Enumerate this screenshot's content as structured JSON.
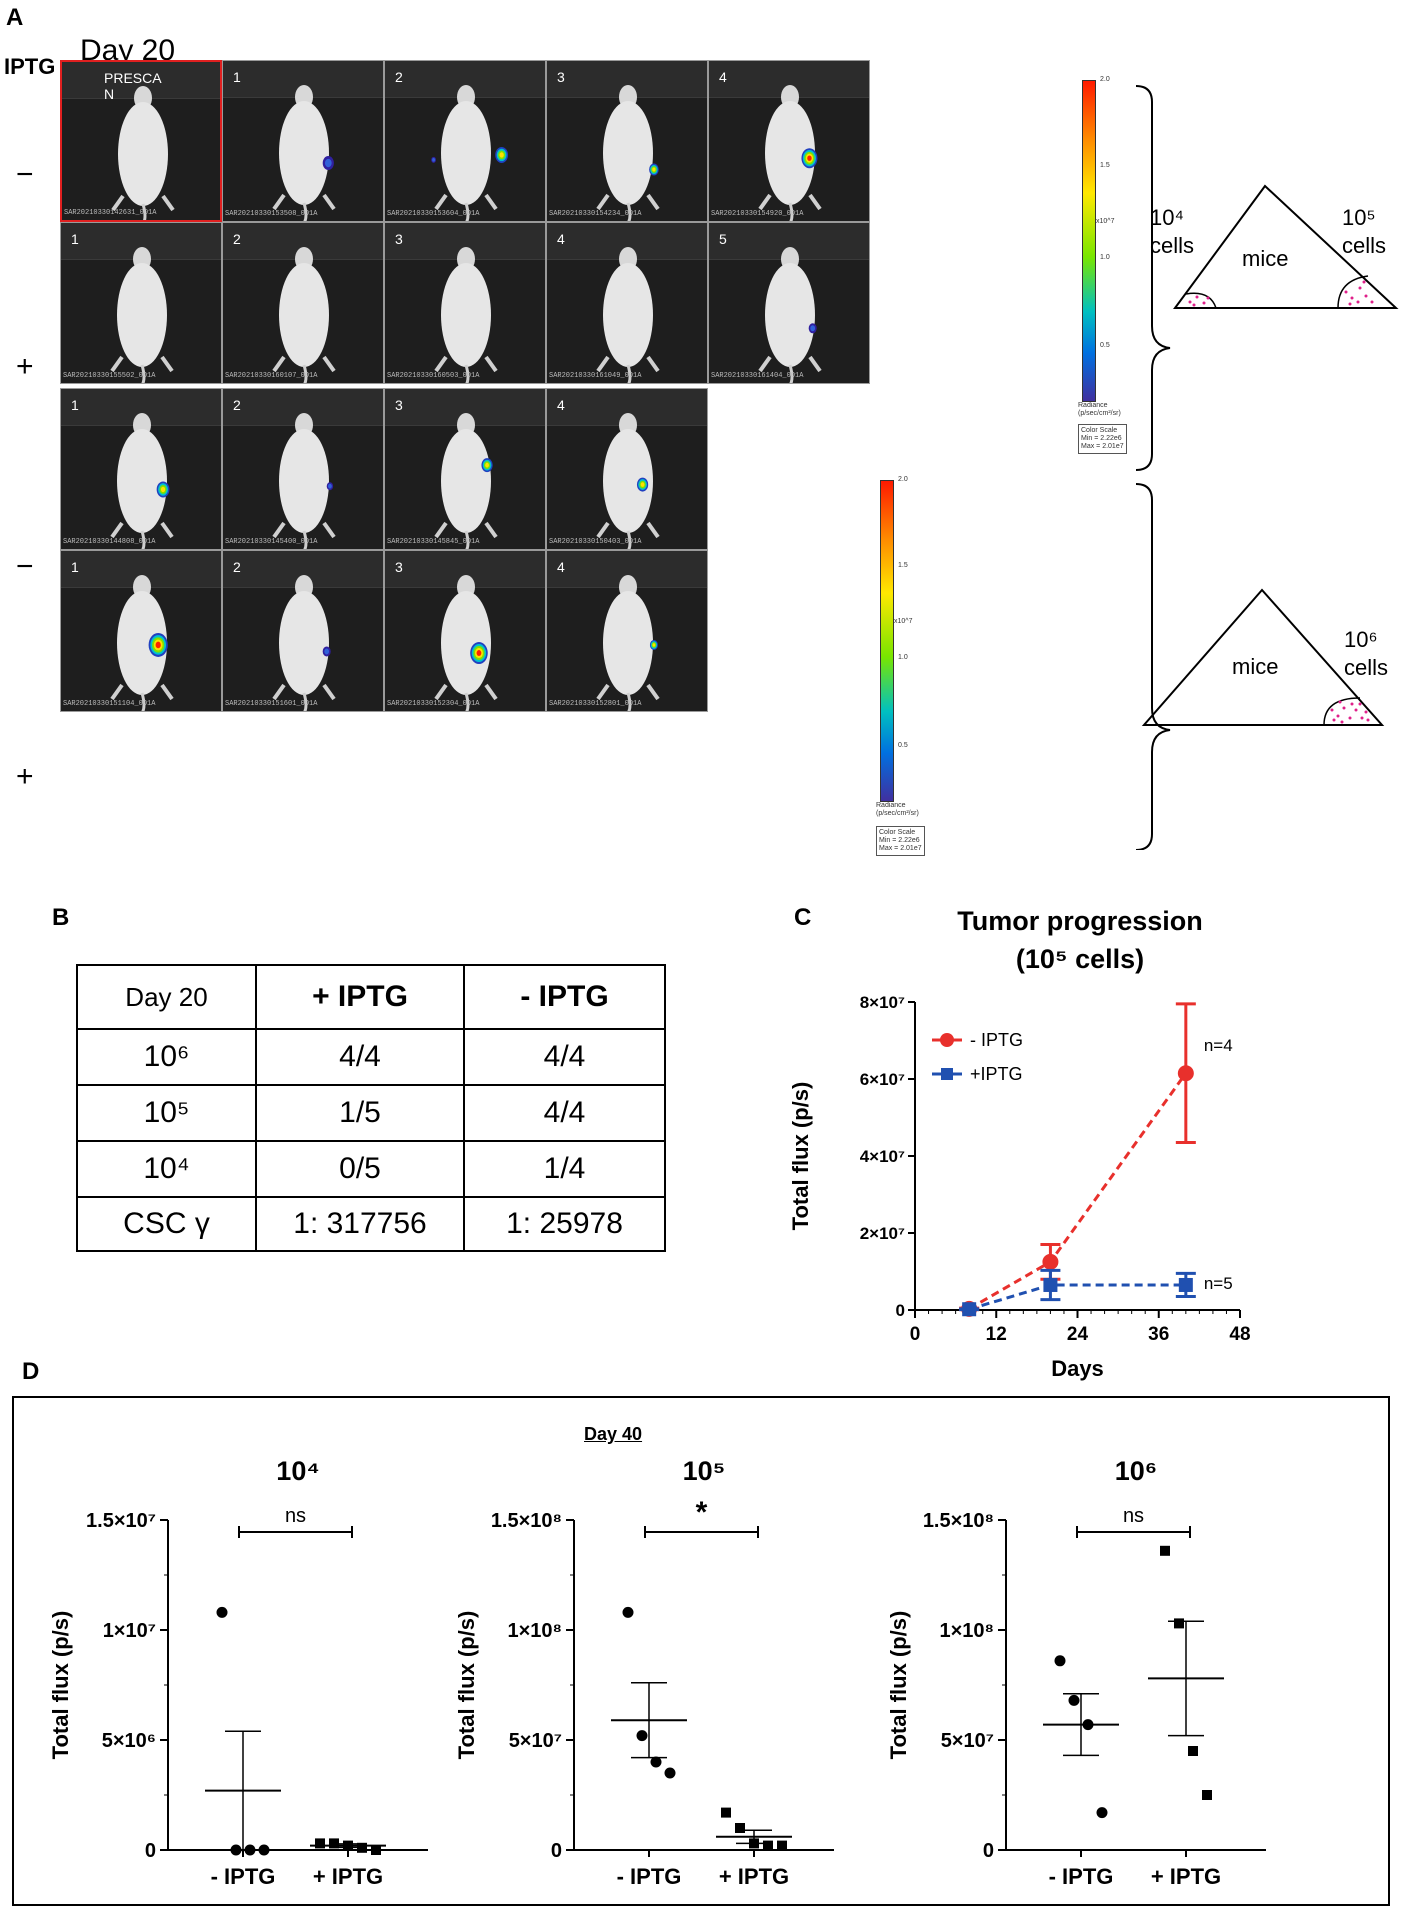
{
  "panel_a": {
    "label": "A",
    "row_header": "IPTG",
    "day": "Day 20",
    "rows": [
      {
        "sign": "−",
        "panels": [
          {
            "num": "PRESCA\nN",
            "caption": "SAR20210330142631_001A",
            "spots": [],
            "highlight": true
          },
          {
            "num": "1",
            "caption": "SAR20210330153508_001A",
            "spots": [
              {
                "fx": 0.65,
                "fy": 0.63,
                "r": 7,
                "level": "low"
              }
            ],
            "highlight": false
          },
          {
            "num": "2",
            "caption": "SAR20210330153604_001A",
            "spots": [
              {
                "fx": 0.72,
                "fy": 0.58,
                "r": 8,
                "level": "mid"
              },
              {
                "fx": 0.3,
                "fy": 0.61,
                "r": 3,
                "level": "low"
              }
            ],
            "highlight": false
          },
          {
            "num": "3",
            "caption": "SAR20210330154234_001A",
            "spots": [
              {
                "fx": 0.66,
                "fy": 0.67,
                "r": 6,
                "level": "mid"
              }
            ],
            "highlight": false
          },
          {
            "num": "4",
            "caption": "SAR20210330154920_001A",
            "spots": [
              {
                "fx": 0.62,
                "fy": 0.6,
                "r": 10,
                "level": "high"
              }
            ],
            "highlight": false
          }
        ]
      },
      {
        "sign": "+",
        "panels": [
          {
            "num": "1",
            "caption": "SAR20210330155502_001A",
            "spots": [],
            "highlight": false
          },
          {
            "num": "2",
            "caption": "SAR20210330160107_001A",
            "spots": [],
            "highlight": false
          },
          {
            "num": "3",
            "caption": "SAR20210330160503_001A",
            "spots": [],
            "highlight": false
          },
          {
            "num": "4",
            "caption": "SAR20210330161049_001A",
            "spots": [],
            "highlight": false
          },
          {
            "num": "5",
            "caption": "SAR20210330161404_001A",
            "spots": [
              {
                "fx": 0.64,
                "fy": 0.65,
                "r": 5,
                "level": "low"
              }
            ],
            "highlight": false
          }
        ]
      },
      {
        "sign": "−",
        "panels": [
          {
            "num": "1",
            "caption": "SAR20210330144808_001A",
            "spots": [
              {
                "fx": 0.63,
                "fy": 0.62,
                "r": 8,
                "level": "mid"
              }
            ],
            "highlight": false
          },
          {
            "num": "2",
            "caption": "SAR20210330145400_001A",
            "spots": [
              {
                "fx": 0.66,
                "fy": 0.6,
                "r": 4,
                "level": "low"
              }
            ],
            "highlight": false
          },
          {
            "num": "3",
            "caption": "SAR20210330145845_001A",
            "spots": [
              {
                "fx": 0.63,
                "fy": 0.47,
                "r": 7,
                "level": "mid"
              }
            ],
            "highlight": false
          },
          {
            "num": "4",
            "caption": "SAR20210330150403_001A",
            "spots": [
              {
                "fx": 0.59,
                "fy": 0.59,
                "r": 7,
                "level": "mid"
              }
            ],
            "highlight": false
          }
        ]
      },
      {
        "sign": "+",
        "panels": [
          {
            "num": "1",
            "caption": "SAR20210330151104_001A",
            "spots": [
              {
                "fx": 0.6,
                "fy": 0.58,
                "r": 12,
                "level": "high"
              }
            ],
            "highlight": false
          },
          {
            "num": "2",
            "caption": "SAR20210330151601_001A",
            "spots": [
              {
                "fx": 0.64,
                "fy": 0.62,
                "r": 5,
                "level": "low"
              }
            ],
            "highlight": false
          },
          {
            "num": "3",
            "caption": "SAR20210330152304_001A",
            "spots": [
              {
                "fx": 0.58,
                "fy": 0.63,
                "r": 11,
                "level": "high"
              }
            ],
            "highlight": false
          },
          {
            "num": "4",
            "caption": "SAR20210330152801_001A",
            "spots": [
              {
                "fx": 0.66,
                "fy": 0.58,
                "r": 5,
                "level": "mid"
              }
            ],
            "highlight": false
          }
        ]
      }
    ],
    "colorbars": [
      {
        "ticks": [
          "2.0",
          "1.5",
          "1.0",
          "0.5"
        ],
        "exp": "x10^7",
        "title": "Radiance\n(p/sec/cm²/sr)",
        "scale": "Color Scale\nMin = 2.22e6\nMax = 2.01e7"
      },
      {
        "ticks": [
          "2.0",
          "1.5",
          "1.0",
          "0.5"
        ],
        "exp": "x10^7",
        "title": "Radiance\n(p/sec/cm²/sr)",
        "scale": "Color Scale\nMin = 2.22e6\nMax = 2.01e7"
      }
    ],
    "schema1": {
      "left": "10⁴\ncells",
      "center": "mice",
      "right": "10⁵\ncells"
    },
    "schema2": {
      "center": "mice",
      "right": "10⁶\ncells"
    }
  },
  "panel_b": {
    "label": "B",
    "table": {
      "header": [
        "Day 20",
        "+ IPTG",
        "- IPTG"
      ],
      "rows": [
        [
          "10⁶",
          "4/4",
          "4/4"
        ],
        [
          "10⁵",
          "1/5",
          "4/4"
        ],
        [
          "10⁴",
          "0/5",
          "1/4"
        ],
        [
          "CSC γ",
          "1: 317756",
          "1: 25978"
        ]
      ]
    }
  },
  "panel_c": {
    "label": "C"
  },
  "panel_d": {
    "label": "D",
    "box_title": "Day 40"
  },
  "chart_data": [
    {
      "id": "C",
      "type": "line",
      "title": "Tumor progression\n(10⁵ cells)",
      "xlabel": "Days",
      "ylabel": "Total flux (p/s)",
      "xlim": [
        0,
        48
      ],
      "ylim": [
        0,
        80000000
      ],
      "xticks": [
        "0",
        "12",
        "24",
        "36",
        "48"
      ],
      "yticks": [
        "0",
        "2×10⁷",
        "4×10⁷",
        "6×10⁷",
        "8×10⁷"
      ],
      "series": [
        {
          "name": "- IPTG",
          "color": "#e8302c",
          "marker": "circle",
          "annotation": "n=4",
          "points": [
            {
              "x": 8,
              "y": 300000,
              "err": 200000
            },
            {
              "x": 20,
              "y": 12500000,
              "err": 4500000
            },
            {
              "x": 40,
              "y": 61500000,
              "err": 18000000
            }
          ]
        },
        {
          "name": "+IPTG",
          "color": "#2050b0",
          "marker": "square",
          "annotation": "n=5",
          "points": [
            {
              "x": 8,
              "y": 200000,
              "err": 100000
            },
            {
              "x": 20,
              "y": 6500000,
              "err": 3800000
            },
            {
              "x": 40,
              "y": 6500000,
              "err": 3000000
            }
          ]
        }
      ]
    },
    {
      "id": "D1",
      "type": "scatter",
      "title": "10⁴",
      "ylabel": "Total flux (p/s)",
      "categories": [
        "- IPTG",
        "+ IPTG"
      ],
      "ylim": [
        0,
        15000000
      ],
      "yticks": [
        "0",
        "5×10⁶",
        "1×10⁷",
        "1.5×10⁷"
      ],
      "significance": "ns",
      "groups": [
        {
          "marker": "circle",
          "points": [
            10800000,
            0,
            0,
            0
          ],
          "mean": 2700000,
          "sem": 2700000
        },
        {
          "marker": "square",
          "points": [
            300000,
            300000,
            200000,
            100000,
            0
          ],
          "mean": 200000,
          "sem": 80000
        }
      ]
    },
    {
      "id": "D2",
      "type": "scatter",
      "title": "10⁵",
      "ylabel": "Total flux (p/s)",
      "categories": [
        "- IPTG",
        "+ IPTG"
      ],
      "ylim": [
        0,
        150000000
      ],
      "yticks": [
        "0",
        "5×10⁷",
        "1×10⁸",
        "1.5×10⁸"
      ],
      "significance": "*",
      "groups": [
        {
          "marker": "circle",
          "points": [
            108000000,
            52000000,
            40000000,
            35000000
          ],
          "mean": 59000000,
          "sem": 17000000
        },
        {
          "marker": "square",
          "points": [
            17000000,
            10000000,
            3000000,
            2000000,
            2000000
          ],
          "mean": 6000000,
          "sem": 3000000
        }
      ]
    },
    {
      "id": "D3",
      "type": "scatter",
      "title": "10⁶",
      "ylabel": "Total flux (p/s)",
      "categories": [
        "- IPTG",
        "+ IPTG"
      ],
      "ylim": [
        0,
        150000000
      ],
      "yticks": [
        "0",
        "5×10⁷",
        "1×10⁸",
        "1.5×10⁸"
      ],
      "significance": "ns",
      "groups": [
        {
          "marker": "circle",
          "points": [
            86000000,
            68000000,
            57000000,
            17000000
          ],
          "mean": 57000000,
          "sem": 14000000
        },
        {
          "marker": "square",
          "points": [
            136000000,
            103000000,
            45000000,
            25000000
          ],
          "mean": 78000000,
          "sem": 26000000
        }
      ]
    }
  ]
}
